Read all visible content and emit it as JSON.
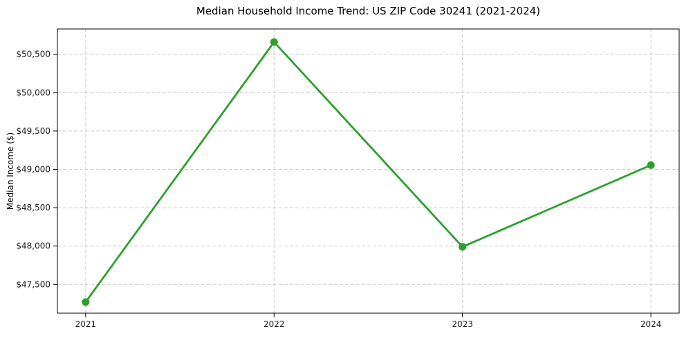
{
  "figure": {
    "background": "#ffffff"
  },
  "chart_data": {
    "type": "line",
    "title": "Median Household Income Trend: US ZIP Code 30241 (2021-2024)",
    "xlabel": "",
    "ylabel": "Median Income ($)",
    "x": [
      2021,
      2022,
      2023,
      2024
    ],
    "x_tick_labels": [
      "2021",
      "2022",
      "2023",
      "2024"
    ],
    "series": [
      {
        "name": "Median Household Income",
        "values": [
          47270,
          50660,
          47990,
          49055
        ],
        "color": "#2ca02c",
        "marker": "circle"
      }
    ],
    "y_ticks": [
      47500,
      48000,
      48500,
      49000,
      49500,
      50000,
      50500
    ],
    "y_tick_labels": [
      "$47,500",
      "$48,000",
      "$48,500",
      "$49,000",
      "$49,500",
      "$50,000",
      "$50,500"
    ],
    "xlim": [
      2020.85,
      2024.15
    ],
    "ylim": [
      47125,
      50830
    ],
    "grid": true,
    "grid_axes": "both",
    "legend_position": "none",
    "styles": {
      "line_color": "#2ca02c",
      "line_width": 2.8,
      "marker_radius": 5.5,
      "grid_color": "#cccccc",
      "grid_dash": "5 3",
      "axis_color": "#000000",
      "tick_text_color": "#1a1a1a",
      "tick_font_size": 12
    }
  }
}
